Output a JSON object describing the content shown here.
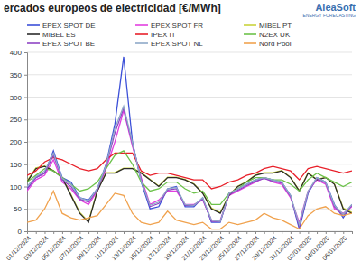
{
  "chart_data": {
    "type": "line",
    "title": "ercados europeos de electricidad [€/MWh]",
    "annotations": [
      "AleaSoft",
      "ENERGY FORECASTING"
    ],
    "categories": [
      "01/12/2024",
      null,
      "03/12/2024",
      null,
      "05/12/2024",
      null,
      "07/12/2024",
      null,
      "09/12/2024",
      null,
      "11/12/2024",
      null,
      "13/12/2024",
      null,
      "15/12/2024",
      null,
      "17/12/2024",
      null,
      "19/12/2024",
      null,
      "21/12/2024",
      null,
      "23/12/2024",
      null,
      "25/12/2024",
      null,
      "27/12/2024",
      null,
      "29/12/2024",
      null,
      "31/12/2024",
      null,
      "02/01/2025",
      null,
      "04/01/2025",
      null,
      "06/01/2025",
      null
    ],
    "ylim": [
      0,
      400
    ],
    "yticks": [
      0,
      50,
      100,
      150,
      200,
      250,
      300,
      350,
      400
    ],
    "grid": true,
    "legend": "top",
    "series": [
      {
        "name": "EPEX SPOT DE",
        "color": "#3c50d8",
        "values": [
          95,
          120,
          130,
          180,
          120,
          110,
          75,
          70,
          95,
          150,
          240,
          390,
          200,
          110,
          50,
          55,
          95,
          100,
          55,
          55,
          75,
          20,
          20,
          85,
          95,
          105,
          115,
          120,
          115,
          110,
          80,
          5,
          85,
          120,
          110,
          60,
          30,
          60
        ]
      },
      {
        "name": "EPEX SPOT FR",
        "color": "#e23fe0",
        "values": [
          90,
          115,
          125,
          160,
          110,
          95,
          70,
          60,
          90,
          140,
          200,
          270,
          190,
          120,
          60,
          70,
          90,
          90,
          60,
          60,
          70,
          25,
          25,
          80,
          90,
          100,
          110,
          120,
          110,
          105,
          75,
          20,
          90,
          115,
          105,
          50,
          40,
          55
        ]
      },
      {
        "name": "MIBEL PT",
        "color": "#c9d33c",
        "values": [
          112,
          142,
          146,
          136,
          121,
          82,
          42,
          22,
          91,
          131,
          131,
          141,
          141,
          131,
          116,
          101,
          121,
          121,
          116,
          106,
          86,
          52,
          42,
          81,
          101,
          111,
          126,
          131,
          131,
          136,
          121,
          91,
          131,
          116,
          121,
          106,
          52,
          42
        ]
      },
      {
        "name": "MIBEL ES",
        "color": "#2b2b2b",
        "values": [
          110,
          140,
          145,
          135,
          120,
          80,
          40,
          20,
          90,
          130,
          130,
          140,
          140,
          130,
          115,
          100,
          120,
          120,
          115,
          105,
          85,
          50,
          40,
          80,
          100,
          110,
          125,
          130,
          130,
          135,
          120,
          90,
          130,
          115,
          120,
          105,
          50,
          40
        ]
      },
      {
        "name": "IPEX IT",
        "color": "#e8202a",
        "values": [
          125,
          135,
          155,
          165,
          160,
          150,
          140,
          135,
          140,
          160,
          175,
          175,
          175,
          135,
          125,
          130,
          130,
          125,
          120,
          115,
          115,
          95,
          100,
          110,
          115,
          125,
          130,
          140,
          145,
          140,
          135,
          115,
          140,
          145,
          140,
          135,
          130,
          135
        ]
      },
      {
        "name": "N2EX UK",
        "color": "#6cc24a",
        "values": [
          110,
          125,
          140,
          135,
          120,
          105,
          90,
          95,
          110,
          140,
          170,
          180,
          150,
          110,
          90,
          95,
          110,
          110,
          95,
          85,
          90,
          60,
          60,
          85,
          95,
          110,
          120,
          120,
          115,
          115,
          105,
          90,
          115,
          130,
          120,
          110,
          100,
          110
        ]
      },
      {
        "name": "EPEX SPOT BE",
        "color": "#8e44c4",
        "values": [
          95,
          120,
          130,
          170,
          115,
          100,
          72,
          65,
          92,
          145,
          220,
          275,
          195,
          115,
          55,
          62,
          92,
          95,
          58,
          58,
          72,
          22,
          22,
          82,
          92,
          102,
          112,
          118,
          112,
          108,
          78,
          10,
          88,
          118,
          108,
          55,
          35,
          58
        ]
      },
      {
        "name": "EPEX SPOT NL",
        "color": "#8fa9c8",
        "values": [
          100,
          122,
          135,
          175,
          118,
          105,
          75,
          68,
          95,
          148,
          230,
          280,
          198,
          112,
          58,
          65,
          95,
          98,
          60,
          58,
          75,
          25,
          22,
          85,
          95,
          105,
          115,
          120,
          115,
          110,
          80,
          15,
          90,
          120,
          110,
          58,
          38,
          60
        ]
      },
      {
        "name": "Nord Pool",
        "color": "#f0a24e",
        "values": [
          20,
          25,
          50,
          90,
          40,
          30,
          25,
          30,
          35,
          60,
          85,
          80,
          40,
          20,
          15,
          20,
          45,
          25,
          20,
          15,
          20,
          5,
          5,
          20,
          15,
          20,
          25,
          40,
          30,
          25,
          15,
          5,
          35,
          50,
          55,
          40,
          35,
          40
        ]
      }
    ]
  }
}
